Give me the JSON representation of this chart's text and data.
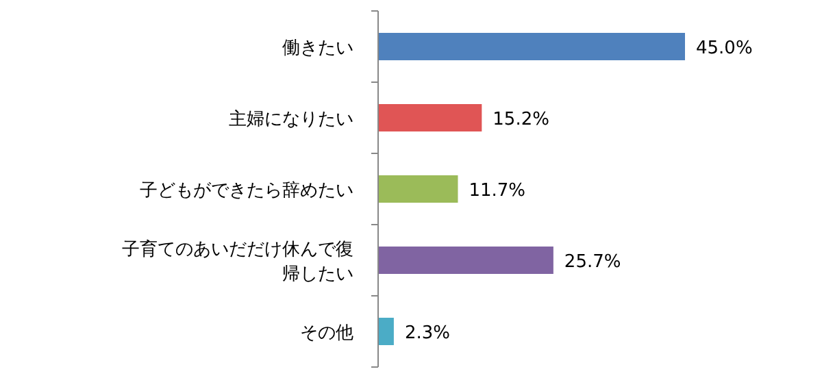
{
  "chart_data": {
    "type": "bar",
    "orientation": "horizontal",
    "data_labels": true,
    "categories": [
      "働きたい",
      "主婦になりたい",
      "子どもができたら辞めたい",
      "子育てのあいだだけ休んで復帰したい",
      "その他"
    ],
    "values": [
      45.0,
      15.2,
      11.7,
      25.7,
      2.3
    ],
    "value_labels": [
      "45.0%",
      "15.2%",
      "11.7%",
      "25.7%",
      "2.3%"
    ],
    "colors": [
      "#4f81bd",
      "#e05555",
      "#9bbb59",
      "#8064a2",
      "#4bacc6"
    ]
  }
}
